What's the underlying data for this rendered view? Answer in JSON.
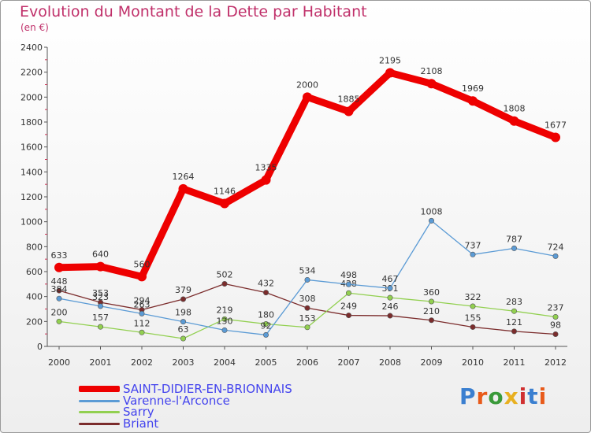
{
  "title": "Evolution du Montant de la Dette par Habitant",
  "unit_label": "(en €)",
  "logo": {
    "text": "Proxiti",
    "colors": [
      "#3a7fd0",
      "#e85a1a",
      "#3a9a3a",
      "#e8b020",
      "#d03030",
      "#3a7fd0",
      "#e85a1a"
    ]
  },
  "chart_data": {
    "type": "line",
    "x": [
      "2000",
      "2001",
      "2002",
      "2003",
      "2004",
      "2005",
      "2006",
      "2007",
      "2008",
      "2009",
      "2010",
      "2011",
      "2012"
    ],
    "ylim": [
      0,
      2400
    ],
    "yticks": [
      0,
      200,
      400,
      600,
      800,
      1000,
      1200,
      1400,
      1600,
      1800,
      2000,
      2200,
      2400
    ],
    "grid": false,
    "legend_position": "bottom-left",
    "series": [
      {
        "name": "SAINT-DIDIER-EN-BRIONNAIS",
        "color": "#ee0000",
        "values": [
          633,
          640,
          560,
          1264,
          1146,
          1335,
          2000,
          1885,
          2195,
          2108,
          1969,
          1808,
          1677
        ],
        "labels": [
          "633",
          "640",
          "560",
          "1264",
          "1146",
          "1335",
          "2000",
          "1885",
          "2195",
          "2108",
          "1969",
          "1808",
          "1677"
        ]
      },
      {
        "name": "Varenne-l'Arconce",
        "color": "#5b9bd5",
        "values": [
          384,
          323,
          263,
          198,
          130,
          92,
          534,
          498,
          467,
          1008,
          737,
          787,
          724
        ],
        "labels": [
          "384",
          "323",
          "263",
          "198",
          "130",
          "92",
          "534",
          "498",
          "467",
          "1008",
          "737",
          "787",
          "724"
        ]
      },
      {
        "name": "Sarry",
        "color": "#92d050",
        "values": [
          200,
          157,
          112,
          63,
          219,
          180,
          153,
          428,
          391,
          360,
          322,
          283,
          237
        ],
        "labels": [
          "200",
          "157",
          "112",
          "63",
          "219",
          "180",
          "153",
          "428",
          "391",
          "360",
          "322",
          "283",
          "237"
        ]
      },
      {
        "name": "Briant",
        "color": "#7b2c2c",
        "values": [
          448,
          353,
          294,
          379,
          502,
          432,
          308,
          249,
          246,
          210,
          155,
          121,
          98
        ],
        "labels": [
          "448",
          "353",
          "294",
          "379",
          "502",
          "432",
          "308",
          "249",
          "246",
          "210",
          "155",
          "121",
          "98"
        ]
      }
    ]
  }
}
